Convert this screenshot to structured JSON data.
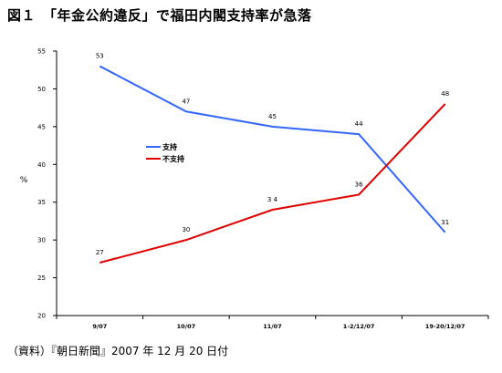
{
  "title": "図１　「年金公約違反」で福田内閣支持率が急落",
  "source": "（資料）『朝日新聞』2007 年 12 月 20 日付",
  "chart_data": {
    "type": "line",
    "categories": [
      "9/07",
      "10/07",
      "11/07",
      "1-2/12/07",
      "19-20/12/07"
    ],
    "ylabel": "%",
    "ylim": [
      20,
      55
    ],
    "yticks": [
      20,
      25,
      30,
      35,
      40,
      45,
      50,
      55
    ],
    "grid": false,
    "legend_position": "center-left",
    "series": [
      {
        "name": "支持",
        "color": "#3366ff",
        "values": [
          53,
          47,
          45,
          44,
          31
        ],
        "labels": [
          "53",
          "47",
          "45",
          "44",
          "31"
        ]
      },
      {
        "name": "不支持",
        "color": "#e00000",
        "values": [
          27,
          30,
          34,
          36,
          48
        ],
        "labels": [
          "27",
          "30",
          "3 4",
          "36",
          "48"
        ]
      }
    ]
  }
}
